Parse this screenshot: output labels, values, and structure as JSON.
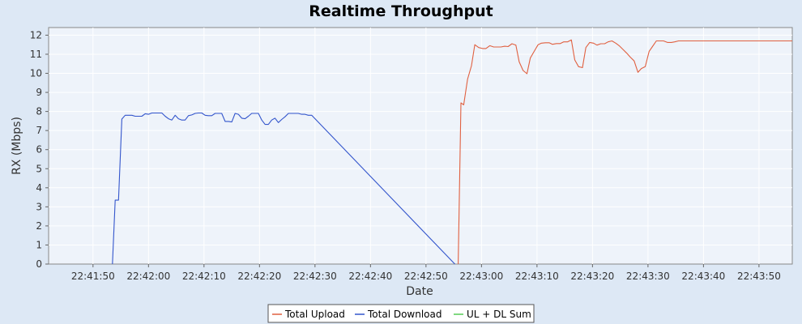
{
  "chart_data": {
    "type": "line",
    "title": "Realtime Throughput",
    "xlabel": "Date",
    "ylabel": "RX (Mbps)",
    "x_unit": "seconds",
    "xlim": [
      "22:41:42",
      "22:43:56"
    ],
    "ylim": [
      0,
      12.4
    ],
    "y_ticks": [
      0,
      1,
      2,
      3,
      4,
      5,
      6,
      7,
      8,
      9,
      10,
      11,
      12
    ],
    "x_ticks": [
      "22:41:50",
      "22:42:00",
      "22:42:10",
      "22:42:20",
      "22:42:30",
      "22:42:40",
      "22:42:50",
      "22:43:00",
      "22:43:10",
      "22:43:20",
      "22:43:30",
      "22:43:40",
      "22:43:50"
    ],
    "grid": true,
    "legend": "bottom",
    "series": [
      {
        "name": "Total Upload",
        "color": "#e06040",
        "points": [
          [
            "22:42:55.8",
            0
          ],
          [
            "22:42:56.3",
            8.45
          ],
          [
            "22:42:56.8",
            8.35
          ],
          [
            "22:42:57.5",
            9.7
          ],
          [
            "22:42:58.2",
            10.4
          ],
          [
            "22:42:58.8",
            11.5
          ],
          [
            "22:42:59.5",
            11.35
          ],
          [
            "22:43:00.2",
            11.3
          ],
          [
            "22:43:00.8",
            11.3
          ],
          [
            "22:43:01.5",
            11.45
          ],
          [
            "22:43:02.2",
            11.38
          ],
          [
            "22:43:02.8",
            11.38
          ],
          [
            "22:43:03.5",
            11.38
          ],
          [
            "22:43:04.2",
            11.42
          ],
          [
            "22:43:04.8",
            11.4
          ],
          [
            "22:43:05.5",
            11.55
          ],
          [
            "22:43:06.2",
            11.48
          ],
          [
            "22:43:06.8",
            10.6
          ],
          [
            "22:43:07.5",
            10.15
          ],
          [
            "22:43:08.2",
            9.98
          ],
          [
            "22:43:08.8",
            10.8
          ],
          [
            "22:43:09.5",
            11.15
          ],
          [
            "22:43:10.2",
            11.5
          ],
          [
            "22:43:10.8",
            11.58
          ],
          [
            "22:43:11.5",
            11.6
          ],
          [
            "22:43:12.2",
            11.6
          ],
          [
            "22:43:12.8",
            11.52
          ],
          [
            "22:43:13.5",
            11.56
          ],
          [
            "22:43:14.2",
            11.56
          ],
          [
            "22:43:14.8",
            11.65
          ],
          [
            "22:43:15.5",
            11.65
          ],
          [
            "22:43:16.2",
            11.75
          ],
          [
            "22:43:16.8",
            10.7
          ],
          [
            "22:43:17.5",
            10.35
          ],
          [
            "22:43:18.2",
            10.3
          ],
          [
            "22:43:18.8",
            11.35
          ],
          [
            "22:43:19.5",
            11.62
          ],
          [
            "22:43:20.2",
            11.58
          ],
          [
            "22:43:20.8",
            11.48
          ],
          [
            "22:43:21.5",
            11.55
          ],
          [
            "22:43:22.2",
            11.55
          ],
          [
            "22:43:22.8",
            11.65
          ],
          [
            "22:43:23.5",
            11.7
          ],
          [
            "22:43:24.2",
            11.58
          ],
          [
            "22:43:24.8",
            11.45
          ],
          [
            "22:43:25.5",
            11.25
          ],
          [
            "22:43:26.2",
            11.05
          ],
          [
            "22:43:26.8",
            10.85
          ],
          [
            "22:43:27.5",
            10.65
          ],
          [
            "22:43:28.2",
            10.05
          ],
          [
            "22:43:28.8",
            10.25
          ],
          [
            "22:43:29.5",
            10.35
          ],
          [
            "22:43:30.2",
            11.15
          ],
          [
            "22:43:30.8",
            11.4
          ],
          [
            "22:43:31.5",
            11.7
          ],
          [
            "22:43:32.2",
            11.7
          ],
          [
            "22:43:32.8",
            11.7
          ],
          [
            "22:43:33.5",
            11.62
          ],
          [
            "22:43:34.2",
            11.62
          ],
          [
            "22:43:34.8",
            11.65
          ],
          [
            "22:43:35.5",
            11.7
          ],
          [
            "22:43:56",
            11.7
          ]
        ]
      },
      {
        "name": "Total Download",
        "color": "#3355cc",
        "points": [
          [
            "22:41:53.5",
            0
          ],
          [
            "22:41:54",
            3.35
          ],
          [
            "22:41:54.6",
            3.35
          ],
          [
            "22:41:55.2",
            7.6
          ],
          [
            "22:41:55.8",
            7.8
          ],
          [
            "22:41:56.4",
            7.8
          ],
          [
            "22:41:57",
            7.8
          ],
          [
            "22:41:57.6",
            7.75
          ],
          [
            "22:41:58.2",
            7.75
          ],
          [
            "22:41:58.8",
            7.75
          ],
          [
            "22:41:59.4",
            7.88
          ],
          [
            "22:42:00",
            7.85
          ],
          [
            "22:42:00.6",
            7.92
          ],
          [
            "22:42:01.2",
            7.92
          ],
          [
            "22:42:01.8",
            7.92
          ],
          [
            "22:42:02.4",
            7.92
          ],
          [
            "22:42:03",
            7.75
          ],
          [
            "22:42:03.6",
            7.62
          ],
          [
            "22:42:04.2",
            7.55
          ],
          [
            "22:42:04.8",
            7.8
          ],
          [
            "22:42:05.4",
            7.62
          ],
          [
            "22:42:06",
            7.55
          ],
          [
            "22:42:06.6",
            7.55
          ],
          [
            "22:42:07.2",
            7.78
          ],
          [
            "22:42:07.8",
            7.82
          ],
          [
            "22:42:08.4",
            7.9
          ],
          [
            "22:42:09",
            7.92
          ],
          [
            "22:42:09.6",
            7.92
          ],
          [
            "22:42:10.2",
            7.8
          ],
          [
            "22:42:10.8",
            7.78
          ],
          [
            "22:42:11.4",
            7.78
          ],
          [
            "22:42:12",
            7.9
          ],
          [
            "22:42:12.6",
            7.9
          ],
          [
            "22:42:13.2",
            7.9
          ],
          [
            "22:42:13.8",
            7.48
          ],
          [
            "22:42:14.4",
            7.48
          ],
          [
            "22:42:15",
            7.45
          ],
          [
            "22:42:15.6",
            7.9
          ],
          [
            "22:42:16.2",
            7.85
          ],
          [
            "22:42:16.8",
            7.65
          ],
          [
            "22:42:17.4",
            7.62
          ],
          [
            "22:42:18",
            7.75
          ],
          [
            "22:42:18.6",
            7.9
          ],
          [
            "22:42:19.2",
            7.9
          ],
          [
            "22:42:19.8",
            7.9
          ],
          [
            "22:42:20.4",
            7.55
          ],
          [
            "22:42:21",
            7.32
          ],
          [
            "22:42:21.6",
            7.32
          ],
          [
            "22:42:22.2",
            7.55
          ],
          [
            "22:42:22.8",
            7.65
          ],
          [
            "22:42:23.4",
            7.42
          ],
          [
            "22:42:24",
            7.58
          ],
          [
            "22:42:24.6",
            7.72
          ],
          [
            "22:42:25.2",
            7.9
          ],
          [
            "22:42:25.8",
            7.9
          ],
          [
            "22:42:26.4",
            7.9
          ],
          [
            "22:42:27",
            7.9
          ],
          [
            "22:42:27.6",
            7.85
          ],
          [
            "22:42:28.2",
            7.85
          ],
          [
            "22:42:28.8",
            7.8
          ],
          [
            "22:42:29.4",
            7.8
          ],
          [
            "22:42:55.2",
            0
          ]
        ]
      },
      {
        "name": "UL + DL Sum",
        "color": "#55cc55",
        "points": []
      }
    ]
  }
}
